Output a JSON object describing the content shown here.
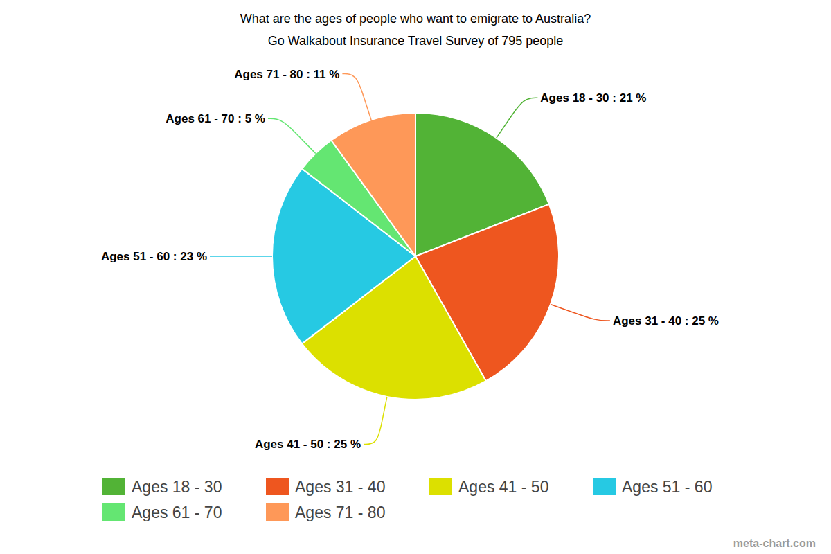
{
  "chart_data": {
    "type": "pie",
    "title": "What are the ages of people who want to emigrate to Australia?",
    "subtitle": "Go Walkabout Insurance Travel Survey of 795 people",
    "categories": [
      "Ages 18 - 30",
      "Ages 31 - 40",
      "Ages 41 - 50",
      "Ages 51 - 60",
      "Ages 61 - 70",
      "Ages 71 - 80"
    ],
    "values": [
      21,
      25,
      25,
      23,
      5,
      11
    ],
    "value_labels": [
      ": 21 %",
      ": 25 %",
      ": 25 %",
      ": 23 %",
      ": 5 %",
      ": 11 %"
    ],
    "colors": [
      "#52b336",
      "#ee561f",
      "#dce000",
      "#26c9e3",
      "#64e672",
      "#fe9858"
    ],
    "data_labels": true,
    "legend": "bottom",
    "annotations": [
      "meta-chart.com"
    ]
  }
}
